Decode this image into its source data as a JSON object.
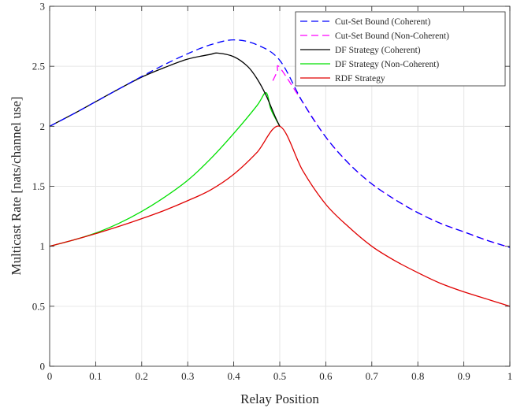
{
  "chart_data": {
    "type": "line",
    "title": "",
    "xlabel": "Relay Position",
    "ylabel": "Multicast Rate [nats/channel use]",
    "xlim": [
      0,
      1
    ],
    "ylim": [
      0,
      3
    ],
    "xticks": [
      0,
      0.1,
      0.2,
      0.3,
      0.4,
      0.5,
      0.6,
      0.7,
      0.8,
      0.9,
      1
    ],
    "xtick_labels": [
      "0",
      "0.1",
      "0.2",
      "0.3",
      "0.4",
      "0.5",
      "0.6",
      "0.7",
      "0.8",
      "0.9",
      "1"
    ],
    "yticks": [
      0,
      0.5,
      1,
      1.5,
      2,
      2.5,
      3
    ],
    "ytick_labels": [
      "0",
      "0.5",
      "1",
      "1.5",
      "2",
      "2.5",
      "3"
    ],
    "grid": true,
    "legend_position": "top-right",
    "series": [
      {
        "name": "Cut-Set Bound (Coherent)",
        "color": "#0000ff",
        "dash": "dashed",
        "x": [
          0,
          0.05,
          0.1,
          0.15,
          0.2,
          0.25,
          0.3,
          0.35,
          0.4,
          0.45,
          0.5,
          0.55,
          0.6,
          0.65,
          0.7,
          0.75,
          0.8,
          0.85,
          0.9,
          0.95,
          1
        ],
        "y": [
          2.0,
          2.1,
          2.205,
          2.31,
          2.415,
          2.515,
          2.605,
          2.68,
          2.72,
          2.68,
          2.55,
          2.2,
          1.91,
          1.69,
          1.52,
          1.39,
          1.28,
          1.19,
          1.12,
          1.05,
          0.99
        ]
      },
      {
        "name": "Cut-Set Bound (Non-Coherent)",
        "color": "#ff00ff",
        "dash": "dashed",
        "x": [
          0.485,
          0.49,
          0.495,
          0.5,
          0.55,
          0.6,
          0.65,
          0.7,
          0.75,
          0.8,
          0.85,
          0.9,
          0.95,
          1
        ],
        "y": [
          2.38,
          2.42,
          2.46,
          2.49,
          2.2,
          1.91,
          1.69,
          1.52,
          1.39,
          1.28,
          1.19,
          1.12,
          1.05,
          0.99
        ]
      },
      {
        "name": "DF Strategy (Coherent)",
        "color": "#000000",
        "dash": "solid",
        "x": [
          0,
          0.05,
          0.1,
          0.15,
          0.2,
          0.25,
          0.3,
          0.35,
          0.365,
          0.4,
          0.43,
          0.45,
          0.47,
          0.49,
          0.5
        ],
        "y": [
          2.0,
          2.1,
          2.205,
          2.31,
          2.41,
          2.49,
          2.56,
          2.6,
          2.61,
          2.58,
          2.5,
          2.4,
          2.26,
          2.08,
          2.0
        ]
      },
      {
        "name": "DF Strategy (Non-Coherent)",
        "color": "#00e000",
        "dash": "solid",
        "x": [
          0,
          0.05,
          0.1,
          0.15,
          0.2,
          0.25,
          0.3,
          0.35,
          0.4,
          0.45,
          0.47,
          0.48,
          0.49,
          0.5
        ],
        "y": [
          1.0,
          1.05,
          1.11,
          1.19,
          1.29,
          1.41,
          1.55,
          1.73,
          1.94,
          2.17,
          2.28,
          2.15,
          2.07,
          2.0
        ]
      },
      {
        "name": "RDF Strategy",
        "color": "#e00000",
        "dash": "solid",
        "x": [
          0,
          0.05,
          0.1,
          0.15,
          0.2,
          0.25,
          0.3,
          0.35,
          0.4,
          0.45,
          0.5,
          0.55,
          0.6,
          0.65,
          0.7,
          0.75,
          0.8,
          0.85,
          0.9,
          0.95,
          1
        ],
        "y": [
          1.0,
          1.05,
          1.105,
          1.165,
          1.23,
          1.3,
          1.38,
          1.47,
          1.6,
          1.78,
          2.0,
          1.63,
          1.35,
          1.16,
          1.0,
          0.88,
          0.78,
          0.69,
          0.62,
          0.56,
          0.5
        ]
      }
    ]
  }
}
